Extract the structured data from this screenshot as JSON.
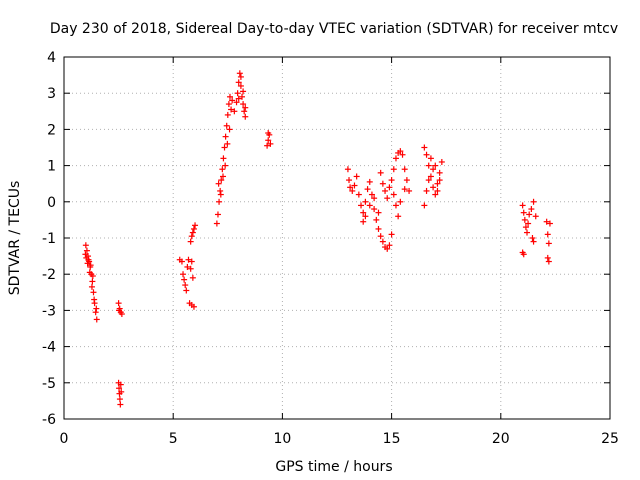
{
  "chart_data": {
    "type": "scatter",
    "title": "Day 230 of 2018, Sidereal Day-to-day VTEC variation (SDTVAR) for receiver mtcv",
    "xlabel": "GPS time / hours",
    "ylabel": "SDTVAR / TECUs",
    "xlim": [
      0,
      25
    ],
    "ylim": [
      -6,
      4
    ],
    "xticks": [
      0,
      5,
      10,
      15,
      20,
      25
    ],
    "yticks": [
      -6,
      -5,
      -4,
      -3,
      -2,
      -1,
      0,
      1,
      2,
      3,
      4
    ],
    "grid": true,
    "marker": "+",
    "color": "#ff0000",
    "series": [
      {
        "name": "SDTVAR",
        "points": [
          [
            1.0,
            -1.2
          ],
          [
            1.05,
            -1.35
          ],
          [
            1.1,
            -1.5
          ],
          [
            1.15,
            -1.65
          ],
          [
            1.2,
            -1.8
          ],
          [
            1.25,
            -2.0
          ],
          [
            1.3,
            -2.2
          ],
          [
            1.35,
            -2.5
          ],
          [
            1.4,
            -2.8
          ],
          [
            1.45,
            -3.05
          ],
          [
            1.5,
            -3.25
          ],
          [
            1.02,
            -1.55
          ],
          [
            1.08,
            -1.7
          ],
          [
            1.12,
            -1.6
          ],
          [
            1.18,
            -1.95
          ],
          [
            1.28,
            -2.35
          ],
          [
            1.38,
            -2.7
          ],
          [
            1.48,
            -2.95
          ],
          [
            0.98,
            -1.45
          ],
          [
            1.22,
            -1.75
          ],
          [
            1.32,
            -2.05
          ],
          [
            2.5,
            -2.8
          ],
          [
            2.55,
            -2.95
          ],
          [
            2.6,
            -3.05
          ],
          [
            2.65,
            -3.1
          ],
          [
            2.52,
            -3.0
          ],
          [
            2.5,
            -5.0
          ],
          [
            2.52,
            -5.15
          ],
          [
            2.54,
            -5.3
          ],
          [
            2.56,
            -5.45
          ],
          [
            2.58,
            -5.6
          ],
          [
            2.6,
            -5.05
          ],
          [
            2.62,
            -5.25
          ],
          [
            5.3,
            -1.6
          ],
          [
            5.4,
            -1.65
          ],
          [
            5.45,
            -2.0
          ],
          [
            5.5,
            -2.15
          ],
          [
            5.55,
            -2.3
          ],
          [
            5.6,
            -2.45
          ],
          [
            5.65,
            -1.8
          ],
          [
            5.7,
            -1.6
          ],
          [
            5.8,
            -1.85
          ],
          [
            5.9,
            -2.1
          ],
          [
            5.85,
            -1.65
          ],
          [
            5.8,
            -1.1
          ],
          [
            5.85,
            -0.95
          ],
          [
            5.9,
            -0.85
          ],
          [
            5.95,
            -0.75
          ],
          [
            6.0,
            -0.65
          ],
          [
            5.75,
            -2.8
          ],
          [
            5.85,
            -2.85
          ],
          [
            5.95,
            -2.9
          ],
          [
            7.0,
            -0.6
          ],
          [
            7.05,
            -0.35
          ],
          [
            7.1,
            0.0
          ],
          [
            7.15,
            0.3
          ],
          [
            7.2,
            0.6
          ],
          [
            7.25,
            0.9
          ],
          [
            7.3,
            1.2
          ],
          [
            7.35,
            1.5
          ],
          [
            7.4,
            1.8
          ],
          [
            7.45,
            2.1
          ],
          [
            7.5,
            2.4
          ],
          [
            7.55,
            2.7
          ],
          [
            7.6,
            2.9
          ],
          [
            7.08,
            0.5
          ],
          [
            7.18,
            0.2
          ],
          [
            7.28,
            0.7
          ],
          [
            7.38,
            1.0
          ],
          [
            7.48,
            1.6
          ],
          [
            7.58,
            2.0
          ],
          [
            7.65,
            2.55
          ],
          [
            7.7,
            2.8
          ],
          [
            7.8,
            2.5
          ],
          [
            7.9,
            2.75
          ],
          [
            7.95,
            3.0
          ],
          [
            8.0,
            3.3
          ],
          [
            8.05,
            3.55
          ],
          [
            8.1,
            3.2
          ],
          [
            8.15,
            2.9
          ],
          [
            8.2,
            2.7
          ],
          [
            8.25,
            2.5
          ],
          [
            8.3,
            2.35
          ],
          [
            8.0,
            2.85
          ],
          [
            8.1,
            3.45
          ],
          [
            8.2,
            3.05
          ],
          [
            8.3,
            2.6
          ],
          [
            9.3,
            1.55
          ],
          [
            9.35,
            1.7
          ],
          [
            9.4,
            1.85
          ],
          [
            9.45,
            1.6
          ],
          [
            9.35,
            1.9
          ],
          [
            13.0,
            0.9
          ],
          [
            13.05,
            0.6
          ],
          [
            13.1,
            0.4
          ],
          [
            13.2,
            0.3
          ],
          [
            13.3,
            0.45
          ],
          [
            13.4,
            0.7
          ],
          [
            13.5,
            0.2
          ],
          [
            13.6,
            -0.1
          ],
          [
            13.7,
            -0.3
          ],
          [
            13.8,
            0.0
          ],
          [
            13.9,
            0.35
          ],
          [
            14.0,
            0.55
          ],
          [
            14.1,
            0.2
          ],
          [
            14.2,
            -0.2
          ],
          [
            14.3,
            -0.5
          ],
          [
            14.4,
            -0.75
          ],
          [
            14.5,
            -0.95
          ],
          [
            14.6,
            -1.1
          ],
          [
            14.7,
            -1.25
          ],
          [
            14.8,
            -1.3
          ],
          [
            14.9,
            -1.2
          ],
          [
            15.0,
            -0.9
          ],
          [
            14.5,
            0.8
          ],
          [
            14.6,
            0.5
          ],
          [
            14.7,
            0.3
          ],
          [
            14.8,
            0.1
          ],
          [
            14.9,
            0.4
          ],
          [
            15.0,
            0.6
          ],
          [
            15.1,
            0.9
          ],
          [
            15.2,
            1.2
          ],
          [
            15.3,
            1.35
          ],
          [
            15.4,
            1.4
          ],
          [
            15.5,
            1.3
          ],
          [
            15.6,
            0.9
          ],
          [
            15.7,
            0.6
          ],
          [
            15.8,
            0.3
          ],
          [
            13.7,
            -0.55
          ],
          [
            13.8,
            -0.4
          ],
          [
            14.0,
            -0.1
          ],
          [
            14.2,
            0.1
          ],
          [
            14.4,
            -0.3
          ],
          [
            15.1,
            0.2
          ],
          [
            15.2,
            -0.1
          ],
          [
            15.3,
            -0.4
          ],
          [
            15.4,
            0.0
          ],
          [
            15.6,
            0.35
          ],
          [
            16.5,
            1.5
          ],
          [
            16.6,
            1.3
          ],
          [
            16.7,
            1.0
          ],
          [
            16.8,
            0.7
          ],
          [
            16.9,
            0.4
          ],
          [
            17.0,
            0.2
          ],
          [
            17.1,
            0.5
          ],
          [
            17.2,
            0.8
          ],
          [
            17.3,
            1.1
          ],
          [
            16.6,
            0.3
          ],
          [
            16.7,
            0.6
          ],
          [
            16.8,
            1.2
          ],
          [
            16.9,
            0.9
          ],
          [
            17.0,
            1.0
          ],
          [
            17.1,
            0.3
          ],
          [
            17.2,
            0.6
          ],
          [
            16.5,
            -0.1
          ],
          [
            21.0,
            -0.1
          ],
          [
            21.05,
            -0.3
          ],
          [
            21.1,
            -0.5
          ],
          [
            21.15,
            -0.7
          ],
          [
            21.2,
            -0.85
          ],
          [
            21.25,
            -0.6
          ],
          [
            21.3,
            -0.35
          ],
          [
            21.4,
            -0.2
          ],
          [
            21.5,
            0.0
          ],
          [
            21.6,
            -0.4
          ],
          [
            21.0,
            -1.4
          ],
          [
            21.05,
            -1.45
          ],
          [
            21.45,
            -1.0
          ],
          [
            21.5,
            -1.1
          ],
          [
            22.1,
            -0.55
          ],
          [
            22.15,
            -0.9
          ],
          [
            22.2,
            -1.15
          ],
          [
            22.25,
            -0.6
          ],
          [
            22.15,
            -1.55
          ],
          [
            22.2,
            -1.65
          ]
        ]
      }
    ]
  }
}
